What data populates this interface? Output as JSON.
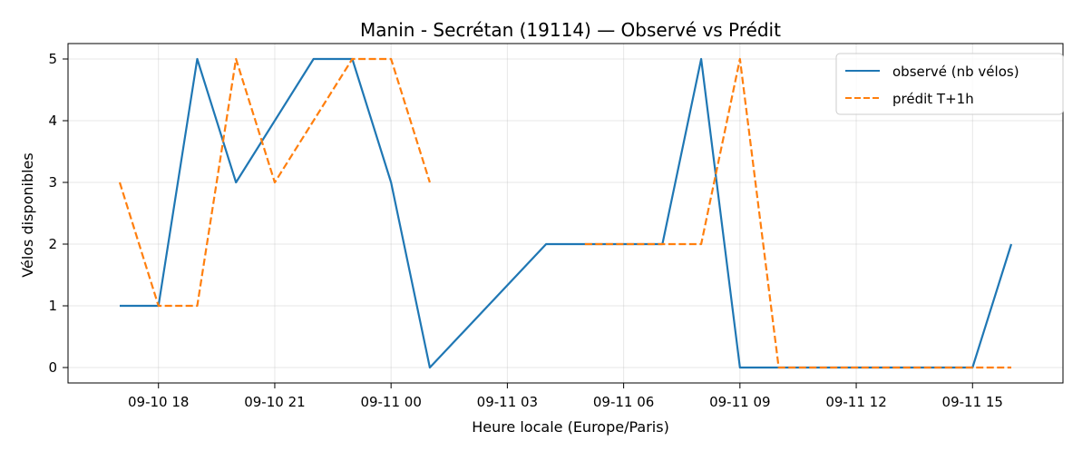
{
  "chart_data": {
    "type": "line",
    "title": "Manin - Secrétan (19114) — Observé vs Prédit",
    "xlabel": "Heure locale (Europe/Paris)",
    "ylabel": "Vélos disponibles",
    "x_tick_labels": [
      "09-10 18",
      "09-10 21",
      "09-11 00",
      "09-11 03",
      "09-11 06",
      "09-11 09",
      "09-11 12",
      "09-11 15"
    ],
    "x_ticks": [
      "2024-09-10 18:00",
      "2024-09-10 21:00",
      "2024-09-11 00:00",
      "2024-09-11 03:00",
      "2024-09-11 06:00",
      "2024-09-11 09:00",
      "2024-09-11 12:00",
      "2024-09-11 15:00"
    ],
    "xlim": [
      "2024-09-10 15:40",
      "2024-09-11 17:20"
    ],
    "ylim": [
      -0.25,
      5.25
    ],
    "y_ticks": [
      0,
      1,
      2,
      3,
      4,
      5
    ],
    "grid": true,
    "legend_position": "top-right",
    "series": [
      {
        "name": "observé (nb vélos)",
        "color": "#1f77b4",
        "style": "solid",
        "points": [
          {
            "x": "2024-09-10 17:00",
            "y": 1
          },
          {
            "x": "2024-09-10 18:00",
            "y": 1
          },
          {
            "x": "2024-09-10 19:00",
            "y": 5
          },
          {
            "x": "2024-09-10 20:00",
            "y": 3
          },
          {
            "x": "2024-09-10 22:00",
            "y": 5
          },
          {
            "x": "2024-09-10 23:00",
            "y": 5
          },
          {
            "x": "2024-09-11 00:00",
            "y": 3
          },
          {
            "x": "2024-09-11 01:00",
            "y": 0
          },
          {
            "x": "2024-09-11 04:00",
            "y": 2
          },
          {
            "x": "2024-09-11 07:00",
            "y": 2
          },
          {
            "x": "2024-09-11 08:00",
            "y": 5
          },
          {
            "x": "2024-09-11 09:00",
            "y": 0
          },
          {
            "x": "2024-09-11 15:00",
            "y": 0
          },
          {
            "x": "2024-09-11 16:00",
            "y": 2
          }
        ]
      },
      {
        "name": "prédit T+1h",
        "color": "#ff7f0e",
        "style": "dashed",
        "segments": [
          [
            {
              "x": "2024-09-10 17:00",
              "y": 3
            },
            {
              "x": "2024-09-10 18:00",
              "y": 1
            },
            {
              "x": "2024-09-10 19:00",
              "y": 1
            },
            {
              "x": "2024-09-10 20:00",
              "y": 5
            },
            {
              "x": "2024-09-10 21:00",
              "y": 3
            },
            {
              "x": "2024-09-10 23:00",
              "y": 5
            },
            {
              "x": "2024-09-11 00:00",
              "y": 5
            },
            {
              "x": "2024-09-11 01:00",
              "y": 3
            }
          ],
          [
            {
              "x": "2024-09-11 05:00",
              "y": 2
            },
            {
              "x": "2024-09-11 08:00",
              "y": 2
            },
            {
              "x": "2024-09-11 09:00",
              "y": 5
            },
            {
              "x": "2024-09-11 10:00",
              "y": 0
            },
            {
              "x": "2024-09-11 16:00",
              "y": 0
            }
          ]
        ]
      }
    ]
  }
}
